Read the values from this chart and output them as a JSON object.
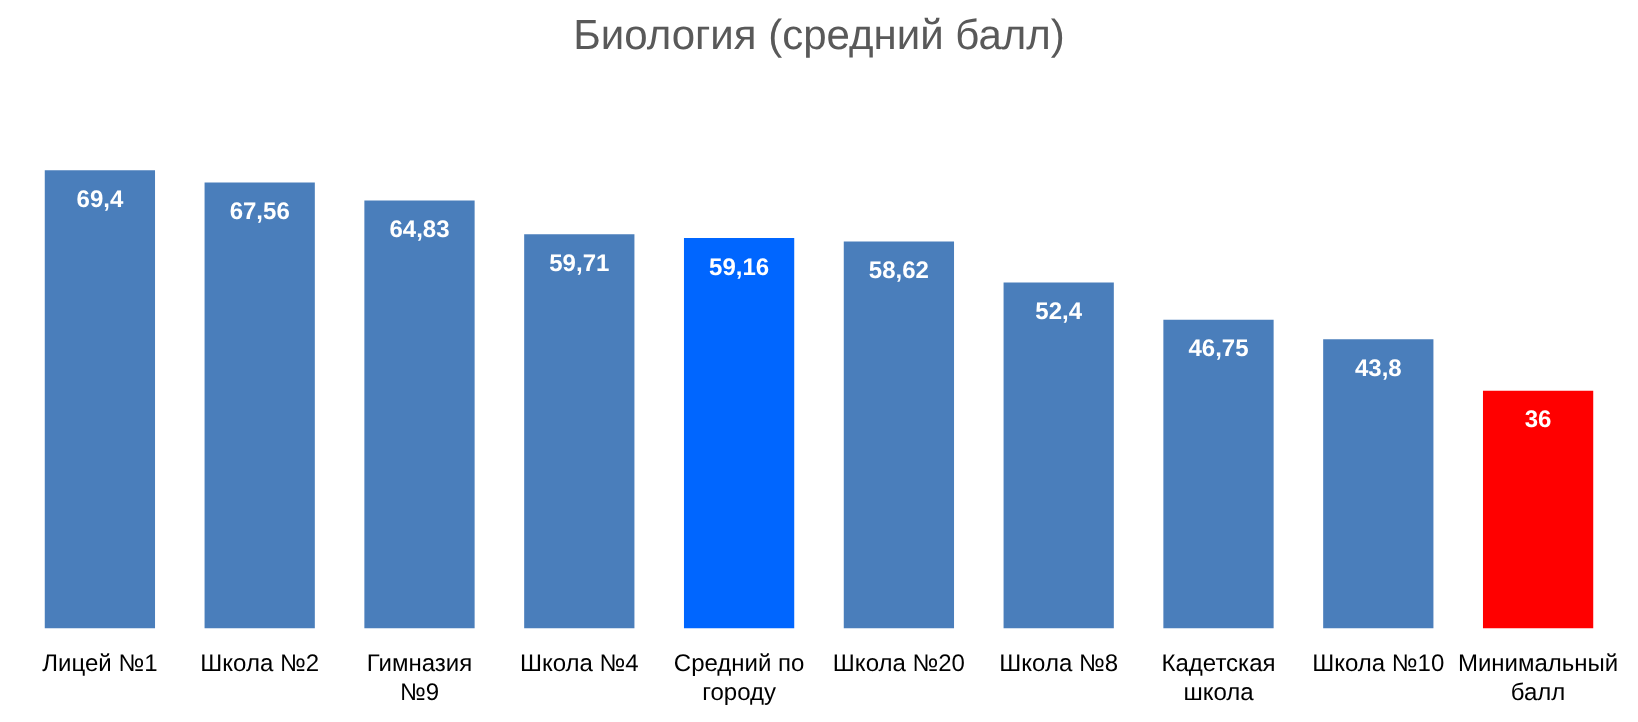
{
  "chart_data": {
    "type": "bar",
    "title": "Биология (средний балл)",
    "categories": [
      "Лицей №1",
      "Школа №2",
      "Гимназия №9",
      "Школа №4",
      "Средний по городу",
      "Школа №20",
      "Школа №8",
      "Кадетская школа",
      "Школа №10",
      "Минимальный балл"
    ],
    "values": [
      69.4,
      67.56,
      64.83,
      59.71,
      59.16,
      58.62,
      52.4,
      46.75,
      43.8,
      36
    ],
    "colors": [
      "#4a7ebb",
      "#4a7ebb",
      "#4a7ebb",
      "#4a7ebb",
      "#0066ff",
      "#4a7ebb",
      "#4a7ebb",
      "#4a7ebb",
      "#4a7ebb",
      "#ff0000"
    ],
    "value_labels": [
      "69,4",
      "67,56",
      "64,83",
      "59,71",
      "59,16",
      "58,62",
      "52,4",
      "46,75",
      "43,8",
      "36"
    ],
    "tick_labels": "x",
    "grid": false,
    "legend": false
  }
}
